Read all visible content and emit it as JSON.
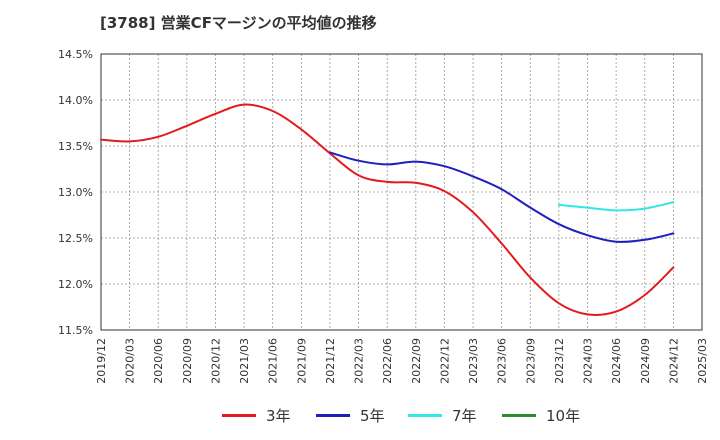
{
  "chart_data": {
    "type": "line",
    "title": "[3788]  営業CFマージンの平均値の推移",
    "xlabel": "",
    "ylabel": "",
    "ylim": [
      11.5,
      14.5
    ],
    "yticks": [
      "11.5%",
      "12.0%",
      "12.5%",
      "13.0%",
      "13.5%",
      "14.0%",
      "14.5%"
    ],
    "xticks": [
      "2019/12",
      "2020/03",
      "2020/06",
      "2020/09",
      "2020/12",
      "2021/03",
      "2021/06",
      "2021/09",
      "2021/12",
      "2022/03",
      "2022/06",
      "2022/09",
      "2022/12",
      "2023/03",
      "2023/06",
      "2023/09",
      "2023/12",
      "2024/03",
      "2024/06",
      "2024/09",
      "2024/12",
      "2025/03"
    ],
    "grid": true,
    "legend_position": "bottom",
    "series": [
      {
        "name": "3年",
        "color": "#e31a1c",
        "points": [
          [
            "2019/12",
            13.57
          ],
          [
            "2020/03",
            13.55
          ],
          [
            "2020/06",
            13.6
          ],
          [
            "2020/09",
            13.72
          ],
          [
            "2020/12",
            13.85
          ],
          [
            "2021/03",
            13.95
          ],
          [
            "2021/06",
            13.88
          ],
          [
            "2021/09",
            13.68
          ],
          [
            "2021/12",
            13.42
          ],
          [
            "2022/03",
            13.18
          ],
          [
            "2022/06",
            13.11
          ],
          [
            "2022/09",
            13.1
          ],
          [
            "2022/12",
            13.01
          ],
          [
            "2023/03",
            12.78
          ],
          [
            "2023/06",
            12.44
          ],
          [
            "2023/09",
            12.07
          ],
          [
            "2023/12",
            11.79
          ],
          [
            "2024/03",
            11.67
          ],
          [
            "2024/06",
            11.7
          ],
          [
            "2024/09",
            11.88
          ],
          [
            "2024/12",
            12.18
          ]
        ]
      },
      {
        "name": "5年",
        "color": "#1f1fbf",
        "points": [
          [
            "2021/12",
            13.43
          ],
          [
            "2022/03",
            13.34
          ],
          [
            "2022/06",
            13.3
          ],
          [
            "2022/09",
            13.33
          ],
          [
            "2022/12",
            13.28
          ],
          [
            "2023/03",
            13.17
          ],
          [
            "2023/06",
            13.03
          ],
          [
            "2023/09",
            12.83
          ],
          [
            "2023/12",
            12.65
          ],
          [
            "2024/03",
            12.53
          ],
          [
            "2024/06",
            12.46
          ],
          [
            "2024/09",
            12.48
          ],
          [
            "2024/12",
            12.55
          ]
        ]
      },
      {
        "name": "7年",
        "color": "#33e6e6",
        "points": [
          [
            "2023/12",
            12.86
          ],
          [
            "2024/03",
            12.83
          ],
          [
            "2024/06",
            12.8
          ],
          [
            "2024/09",
            12.82
          ],
          [
            "2024/12",
            12.89
          ]
        ]
      },
      {
        "name": "10年",
        "color": "#2e8b2e",
        "points": []
      }
    ]
  }
}
